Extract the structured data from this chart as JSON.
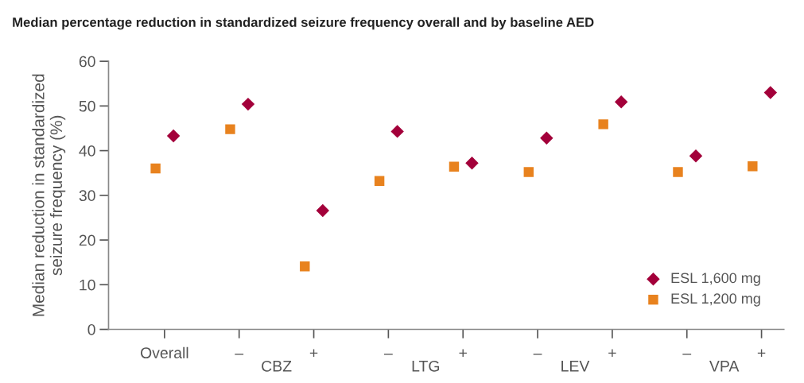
{
  "chart_data": {
    "type": "scatter",
    "title": "Median percentage reduction in standardized seizure frequency overall and by baseline AED",
    "ylabel": "Median reduction in standardized\nseizure frequency (%)",
    "categories": [
      "Overall",
      "–",
      "+",
      "–",
      "+",
      "–",
      "+",
      "–",
      "+"
    ],
    "annotations": [
      "CBZ",
      "LTG",
      "LEV",
      "VPA"
    ],
    "series": [
      {
        "name": "ESL 1,600 mg",
        "color": "#a3003a",
        "marker": "diamond",
        "values": [
          43.3,
          50.4,
          26.6,
          44.3,
          37.2,
          42.8,
          50.9,
          38.8,
          53.0
        ]
      },
      {
        "name": "ESL 1,200 mg",
        "color": "#e8821e",
        "marker": "square",
        "values": [
          36.0,
          44.8,
          14.1,
          33.2,
          36.4,
          35.2,
          45.9,
          35.2,
          36.5
        ]
      }
    ],
    "ylim": [
      0,
      60
    ],
    "yticks": [
      0,
      10,
      20,
      30,
      40,
      50,
      60
    ],
    "grid": false,
    "legend": "bottom right"
  }
}
